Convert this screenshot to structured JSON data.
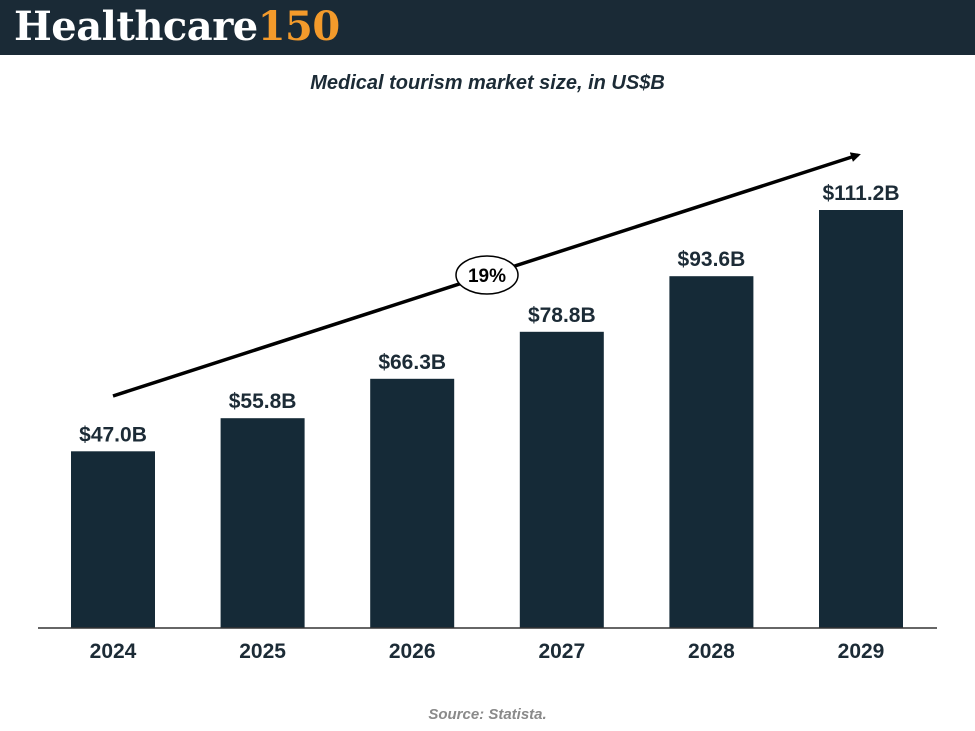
{
  "header": {
    "logo_main": "Healthcare",
    "logo_accent": "150"
  },
  "colors": {
    "header_bg": "#1a2a36",
    "logo_accent": "#f39a2b",
    "bar": "#152a37",
    "text": "#1c2b36",
    "source": "#8a8a8a"
  },
  "chart_data": {
    "type": "bar",
    "title": "Medical tourism market size, in US$B",
    "categories": [
      "2024",
      "2025",
      "2026",
      "2027",
      "2028",
      "2029"
    ],
    "values": [
      47.0,
      55.8,
      66.3,
      78.8,
      93.6,
      111.2
    ],
    "data_labels": [
      "$47.0B",
      "$55.8B",
      "$66.3B",
      "$78.8B",
      "$93.6B",
      "$111.2B"
    ],
    "xlabel": "",
    "ylabel": "",
    "grid": false,
    "legend": "none",
    "annotation": {
      "type": "trend-arrow",
      "label": "19%"
    }
  },
  "footer": {
    "source": "Source: Statista."
  }
}
